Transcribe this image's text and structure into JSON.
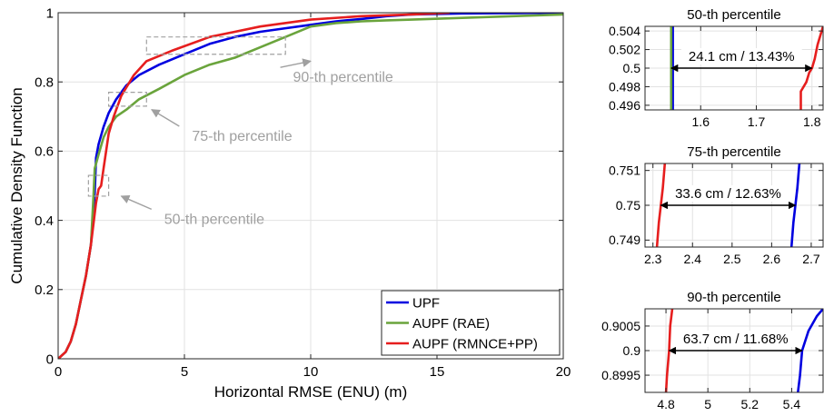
{
  "colors": {
    "upf": "#0000e0",
    "aupf_rae": "#6aa43c",
    "aupf_rmnce": "#e61e1e",
    "grid": "#e2e2e2",
    "annotation": "#a0a0a0",
    "axis": "#262626"
  },
  "chart_data": [
    {
      "type": "line",
      "title": "",
      "xlabel": "Horizontal RMSE (ENU) (m)",
      "ylabel": "Cumulative Density Function",
      "xlim": [
        0,
        20
      ],
      "ylim": [
        0,
        1
      ],
      "xticks": [
        0,
        5,
        10,
        15,
        20
      ],
      "yticks": [
        0,
        0.2,
        0.4,
        0.6,
        0.8,
        1
      ],
      "grid": true,
      "legend_position": "bottom-right",
      "series": [
        {
          "name": "UPF",
          "color_key": "upf",
          "x": [
            0,
            0.3,
            0.5,
            0.7,
            0.9,
            1.1,
            1.3,
            1.45,
            1.5,
            1.6,
            1.8,
            2.0,
            2.3,
            2.7,
            3.2,
            4.0,
            5.0,
            6.0,
            7.0,
            8.0,
            9.0,
            10.0,
            11.0,
            12.0,
            13.0,
            14.0,
            16.0,
            18.0,
            20.0
          ],
          "y": [
            0,
            0.02,
            0.05,
            0.1,
            0.17,
            0.24,
            0.33,
            0.48,
            0.58,
            0.62,
            0.67,
            0.71,
            0.75,
            0.79,
            0.82,
            0.85,
            0.88,
            0.91,
            0.93,
            0.945,
            0.955,
            0.965,
            0.975,
            0.982,
            0.99,
            0.995,
            0.998,
            0.999,
            1.0
          ]
        },
        {
          "name": "AUPF (RAE)",
          "color_key": "aupf_rae",
          "x": [
            0,
            0.3,
            0.5,
            0.7,
            0.9,
            1.1,
            1.3,
            1.4,
            1.45,
            1.6,
            1.8,
            2.0,
            2.3,
            2.7,
            3.2,
            4.0,
            5.0,
            6.0,
            7.0,
            8.0,
            9.0,
            10.0,
            11.0,
            12.0,
            13.0,
            14.0,
            16.0,
            18.0,
            20.0
          ],
          "y": [
            0,
            0.02,
            0.05,
            0.1,
            0.17,
            0.24,
            0.33,
            0.47,
            0.55,
            0.59,
            0.64,
            0.67,
            0.7,
            0.72,
            0.75,
            0.78,
            0.82,
            0.85,
            0.87,
            0.9,
            0.93,
            0.96,
            0.97,
            0.975,
            0.978,
            0.98,
            0.985,
            0.99,
            0.995
          ]
        },
        {
          "name": "AUPF (RMNCE+PP)",
          "color_key": "aupf_rmnce",
          "x": [
            0,
            0.3,
            0.5,
            0.7,
            0.9,
            1.1,
            1.3,
            1.5,
            1.6,
            1.7,
            1.8,
            1.9,
            2.0,
            2.2,
            2.5,
            3.0,
            3.5,
            4.5,
            6.0,
            8.0,
            10.0,
            12.0,
            14.0,
            15.5
          ],
          "y": [
            0,
            0.02,
            0.05,
            0.1,
            0.17,
            0.24,
            0.33,
            0.45,
            0.49,
            0.5,
            0.55,
            0.6,
            0.65,
            0.7,
            0.76,
            0.82,
            0.86,
            0.89,
            0.93,
            0.96,
            0.98,
            0.99,
            0.995,
            1.0
          ]
        }
      ],
      "annotations": [
        {
          "text": "90-th percentile",
          "box": [
            3.5,
            0.88,
            9.0,
            0.93
          ],
          "text_at": [
            9.3,
            0.8
          ],
          "arrow_to": [
            10.0,
            0.86
          ]
        },
        {
          "text": "75-th percentile",
          "box": [
            2.0,
            0.73,
            3.5,
            0.77
          ],
          "text_at": [
            5.3,
            0.63
          ],
          "arrow_to": [
            3.7,
            0.72
          ]
        },
        {
          "text": "50-th percentile",
          "box": [
            1.2,
            0.47,
            2.0,
            0.53
          ],
          "text_at": [
            4.2,
            0.39
          ],
          "arrow_to": [
            2.5,
            0.47
          ]
        }
      ]
    },
    {
      "type": "line",
      "title": "50-th percentile",
      "xlim": [
        1.5,
        1.82
      ],
      "ylim": [
        0.4955,
        0.5045
      ],
      "xticks": [
        1.6,
        1.7,
        1.8
      ],
      "yticks": [
        0.496,
        0.498,
        0.5,
        0.502,
        0.504
      ],
      "grid": true,
      "series": [
        {
          "name": "UPF",
          "color_key": "upf",
          "x": [
            1.55,
            1.55
          ],
          "y": [
            0.4955,
            0.5045
          ]
        },
        {
          "name": "AUPF (RAE)",
          "color_key": "aupf_rae",
          "x": [
            1.547,
            1.547
          ],
          "y": [
            0.4955,
            0.5045
          ]
        },
        {
          "name": "AUPF (RMNCE+PP)",
          "color_key": "aupf_rmnce",
          "x": [
            1.78,
            1.78,
            1.79,
            1.795,
            1.8,
            1.805,
            1.81,
            1.82
          ],
          "y": [
            0.4955,
            0.4975,
            0.4985,
            0.4995,
            0.5,
            0.501,
            0.5025,
            0.5045
          ]
        }
      ],
      "measurement": {
        "label": "24.1 cm / 13.43%",
        "x_from": 1.547,
        "x_to": 1.8,
        "y": 0.5
      }
    },
    {
      "type": "line",
      "title": "75-th percentile",
      "xlim": [
        2.28,
        2.73
      ],
      "ylim": [
        0.7488,
        0.7512
      ],
      "xticks": [
        2.3,
        2.4,
        2.5,
        2.6,
        2.7
      ],
      "yticks": [
        0.749,
        0.75,
        0.751
      ],
      "grid": true,
      "series": [
        {
          "name": "UPF",
          "color_key": "upf",
          "x": [
            2.65,
            2.655,
            2.66,
            2.665,
            2.67
          ],
          "y": [
            0.7488,
            0.7495,
            0.75,
            0.7505,
            0.7512
          ]
        },
        {
          "name": "AUPF (RMNCE+PP)",
          "color_key": "aupf_rmnce",
          "x": [
            2.31,
            2.315,
            2.32,
            2.325,
            2.33
          ],
          "y": [
            0.7488,
            0.7495,
            0.75,
            0.7505,
            0.7512
          ]
        }
      ],
      "measurement": {
        "label": "33.6 cm / 12.63%",
        "x_from": 2.32,
        "x_to": 2.66,
        "y": 0.75
      }
    },
    {
      "type": "line",
      "title": "90-th percentile",
      "xlim": [
        4.7,
        5.55
      ],
      "ylim": [
        0.89915,
        0.90085
      ],
      "xticks": [
        4.8,
        5,
        5.2,
        5.4
      ],
      "yticks": [
        0.8995,
        0.9,
        0.9005
      ],
      "grid": true,
      "series": [
        {
          "name": "UPF",
          "color_key": "upf",
          "x": [
            5.43,
            5.44,
            5.45,
            5.48,
            5.52,
            5.55
          ],
          "y": [
            0.89915,
            0.8995,
            0.9,
            0.9004,
            0.9007,
            0.90085
          ]
        },
        {
          "name": "AUPF (RMNCE+PP)",
          "color_key": "aupf_rmnce",
          "x": [
            4.8,
            4.805,
            4.815,
            4.82,
            4.83
          ],
          "y": [
            0.89915,
            0.8995,
            0.9,
            0.9005,
            0.90085
          ]
        }
      ],
      "measurement": {
        "label": "63.7 cm / 11.68%",
        "x_from": 4.815,
        "x_to": 5.45,
        "y": 0.9
      }
    }
  ]
}
